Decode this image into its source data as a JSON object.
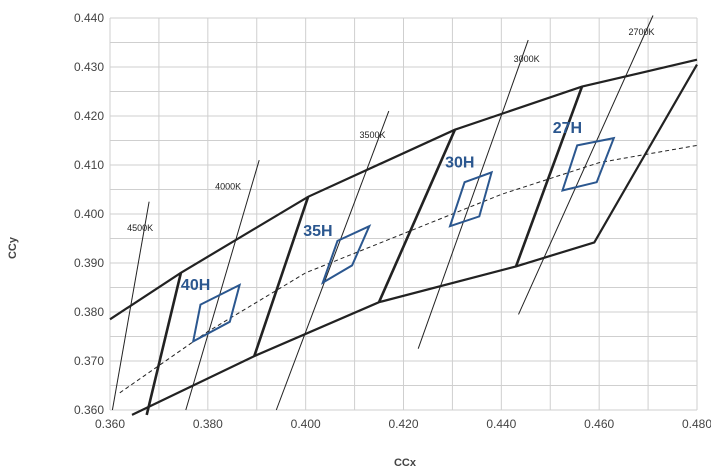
{
  "chart_data": {
    "type": "line",
    "xlabel": "CCx",
    "ylabel": "CCy",
    "xlim": [
      0.36,
      0.48
    ],
    "ylim": [
      0.36,
      0.44
    ],
    "x_ticks": [
      "0.360",
      "0.380",
      "0.400",
      "0.420",
      "0.440",
      "0.460",
      "0.480"
    ],
    "y_ticks": [
      "0.360",
      "0.370",
      "0.380",
      "0.390",
      "0.400",
      "0.410",
      "0.420",
      "0.430",
      "0.440"
    ],
    "grid": true,
    "colors": {
      "grid": "#cfcfcf",
      "bin_outline": "#222222",
      "quad": "#2b578f",
      "bin_label": "#2b578f",
      "planckian": "#222222"
    },
    "bin_outline_top": [
      [
        0.36,
        0.3785
      ],
      [
        0.3745,
        0.388
      ],
      [
        0.4005,
        0.4035
      ],
      [
        0.4305,
        0.4172
      ],
      [
        0.4565,
        0.426
      ],
      [
        0.48,
        0.4315
      ]
    ],
    "bin_outline_bottom": [
      [
        0.3645,
        0.359
      ],
      [
        0.3895,
        0.371
      ],
      [
        0.415,
        0.382
      ],
      [
        0.443,
        0.3893
      ],
      [
        0.459,
        0.3942
      ],
      [
        0.48,
        0.4305
      ]
    ],
    "bin_boundaries": [
      [
        [
          0.3745,
          0.388
        ],
        [
          0.3675,
          0.359
        ]
      ],
      [
        [
          0.4005,
          0.4035
        ],
        [
          0.3895,
          0.371
        ]
      ],
      [
        [
          0.4305,
          0.4172
        ],
        [
          0.415,
          0.382
        ]
      ],
      [
        [
          0.4565,
          0.426
        ],
        [
          0.443,
          0.3893
        ]
      ]
    ],
    "planckian_locus": [
      [
        0.362,
        0.3635
      ],
      [
        0.38,
        0.376
      ],
      [
        0.4,
        0.388
      ],
      [
        0.42,
        0.396
      ],
      [
        0.44,
        0.404
      ],
      [
        0.46,
        0.4105
      ],
      [
        0.48,
        0.414
      ]
    ],
    "isotherms": [
      {
        "label": "4500K",
        "points": [
          [
            0.3605,
            0.36
          ],
          [
            0.368,
            0.4025
          ]
        ],
        "label_at": [
          0.3635,
          0.3965
        ]
      },
      {
        "label": "4000K",
        "points": [
          [
            0.3755,
            0.36
          ],
          [
            0.3905,
            0.411
          ]
        ],
        "label_at": [
          0.3815,
          0.405
        ]
      },
      {
        "label": "3500K",
        "points": [
          [
            0.394,
            0.36
          ],
          [
            0.417,
            0.421
          ]
        ],
        "label_at": [
          0.411,
          0.4155
        ]
      },
      {
        "label": "3000K",
        "points": [
          [
            0.423,
            0.3725
          ],
          [
            0.4455,
            0.4355
          ]
        ],
        "label_at": [
          0.4425,
          0.431
        ]
      },
      {
        "label": "2700K",
        "points": [
          [
            0.4435,
            0.3795
          ],
          [
            0.471,
            0.4405
          ]
        ],
        "label_at": [
          0.466,
          0.4365
        ]
      }
    ],
    "quadrangles": [
      {
        "label": "40H",
        "points": [
          [
            0.3785,
            0.3815
          ],
          [
            0.3865,
            0.3855
          ],
          [
            0.3845,
            0.378
          ],
          [
            0.377,
            0.374
          ]
        ],
        "label_at": [
          0.3745,
          0.3845
        ]
      },
      {
        "label": "35H",
        "points": [
          [
            0.4065,
            0.3945
          ],
          [
            0.413,
            0.3975
          ],
          [
            0.4095,
            0.3895
          ],
          [
            0.4035,
            0.386
          ]
        ],
        "label_at": [
          0.3995,
          0.3955
        ]
      },
      {
        "label": "30H",
        "points": [
          [
            0.4325,
            0.4065
          ],
          [
            0.438,
            0.4085
          ],
          [
            0.4355,
            0.3995
          ],
          [
            0.4295,
            0.3975
          ]
        ],
        "label_at": [
          0.4285,
          0.4095
        ]
      },
      {
        "label": "27H",
        "points": [
          [
            0.4555,
            0.414
          ],
          [
            0.463,
            0.4155
          ],
          [
            0.4595,
            0.4065
          ],
          [
            0.4525,
            0.4048
          ]
        ],
        "label_at": [
          0.4505,
          0.4165
        ]
      }
    ]
  }
}
